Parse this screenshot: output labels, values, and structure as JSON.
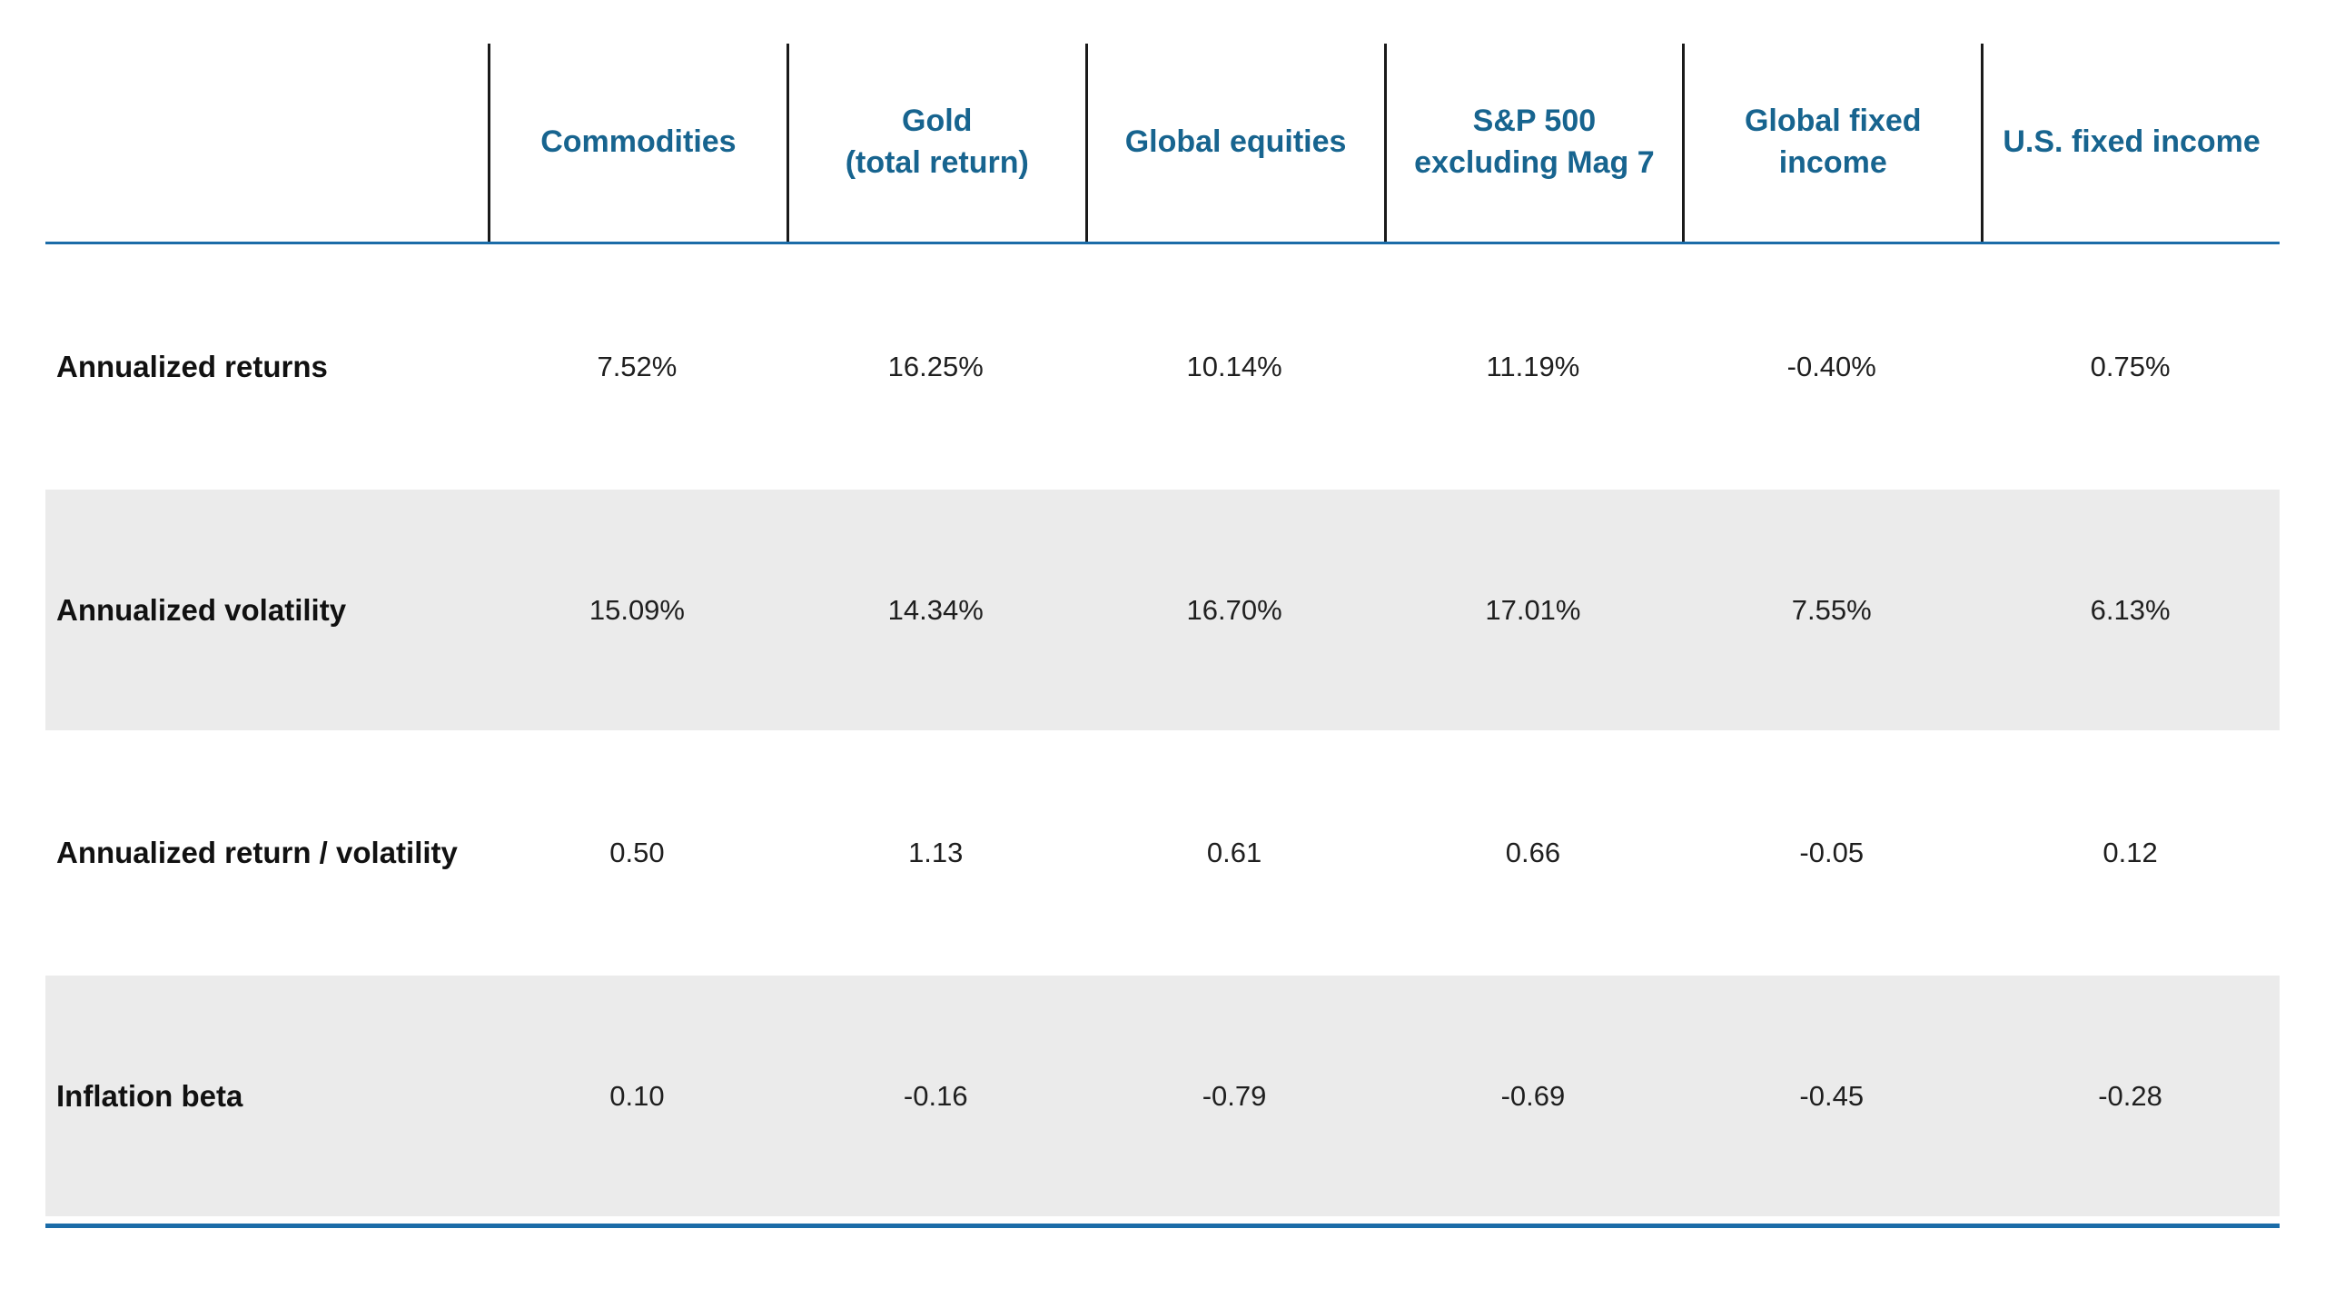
{
  "chart_data": {
    "type": "table",
    "title": "",
    "columns": [
      "Commodities",
      "Gold\n(total return)",
      "Global equities",
      "S&P 500\nexcluding Mag 7",
      "Global fixed\nincome",
      "U.S. fixed income"
    ],
    "rows": [
      {
        "label": "Annualized returns",
        "values": [
          "7.52%",
          "16.25%",
          "10.14%",
          "11.19%",
          "-0.40%",
          "0.75%"
        ]
      },
      {
        "label": "Annualized volatility",
        "values": [
          "15.09%",
          "14.34%",
          "16.70%",
          "17.01%",
          "7.55%",
          "6.13%"
        ]
      },
      {
        "label": "Annualized return / volatility",
        "values": [
          "0.50",
          "1.13",
          "0.61",
          "0.66",
          "-0.05",
          "0.12"
        ]
      },
      {
        "label": "Inflation beta",
        "values": [
          "0.10",
          "-0.16",
          "-0.79",
          "-0.69",
          "-0.45",
          "-0.28"
        ]
      }
    ]
  },
  "colors": {
    "header_text": "#17648f",
    "rule_blue": "#1b6ca8",
    "divider_black": "#1a1a1a",
    "row_alt_bg": "#ebebeb",
    "value_text": "#1f1f1f",
    "label_text": "#111111"
  }
}
